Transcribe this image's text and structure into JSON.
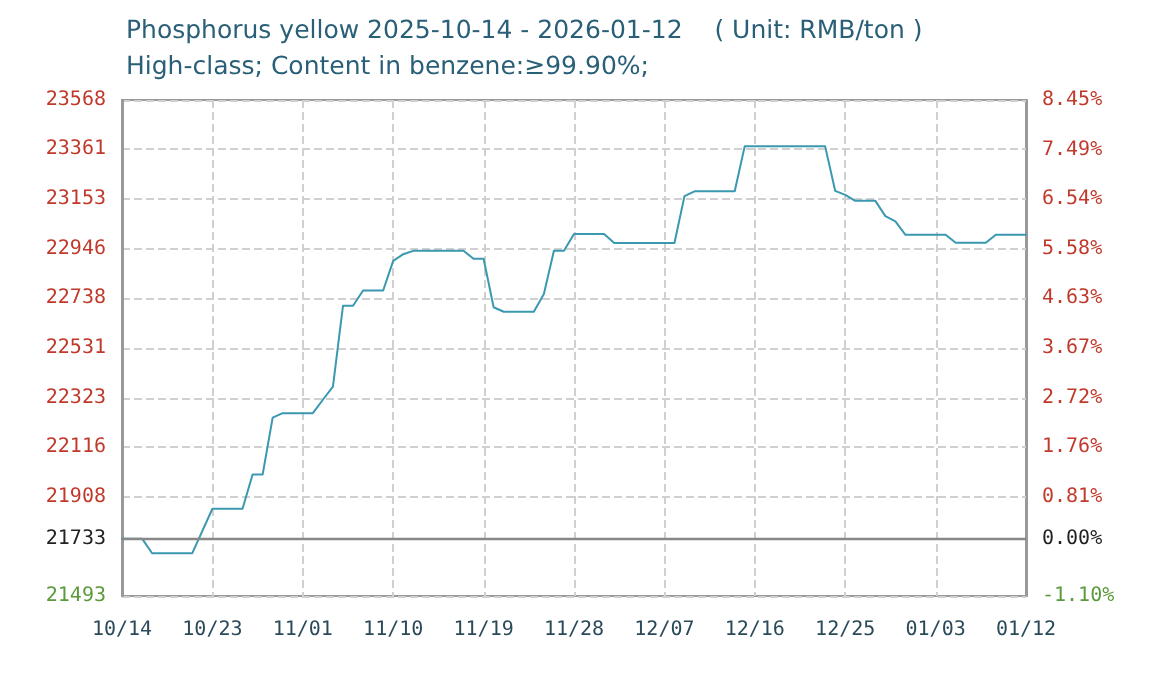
{
  "chart_data": {
    "type": "line",
    "title": "Phosphorus yellow 2025-10-14 - 2026-01-12    ( Unit: RMB/ton )",
    "subtitle": "High-class; Content in benzene:≥99.90%;",
    "x": [
      "2025-10-14",
      "2025-10-16",
      "2025-10-17",
      "2025-10-21",
      "2025-10-23",
      "2025-10-26",
      "2025-10-27",
      "2025-10-28",
      "2025-10-29",
      "2025-10-30",
      "2025-11-02",
      "2025-11-03",
      "2025-11-04",
      "2025-11-05",
      "2025-11-06",
      "2025-11-07",
      "2025-11-09",
      "2025-11-10",
      "2025-11-11",
      "2025-11-12",
      "2025-11-17",
      "2025-11-18",
      "2025-11-19",
      "2025-11-20",
      "2025-11-21",
      "2025-11-24",
      "2025-11-25",
      "2025-11-26",
      "2025-11-27",
      "2025-11-28",
      "2025-12-01",
      "2025-12-02",
      "2025-12-08",
      "2025-12-09",
      "2025-12-10",
      "2025-12-14",
      "2025-12-15",
      "2025-12-23",
      "2025-12-24",
      "2025-12-25",
      "2025-12-26",
      "2025-12-28",
      "2025-12-29",
      "2025-12-30",
      "2025-12-31",
      "2026-01-04",
      "2026-01-05",
      "2026-01-08",
      "2026-01-09",
      "2026-01-12"
    ],
    "series": [
      {
        "color": "#3a98b0",
        "values": [
          21733,
          21733,
          21672,
          21672,
          21858,
          21858,
          22001,
          22001,
          22239,
          22258,
          22258,
          22314,
          22369,
          22707,
          22707,
          22771,
          22771,
          22895,
          22923,
          22937,
          22937,
          22904,
          22904,
          22701,
          22682,
          22682,
          22756,
          22937,
          22937,
          23007,
          23007,
          22970,
          22970,
          23166,
          23186,
          23186,
          23375,
          23375,
          23188,
          23171,
          23146,
          23146,
          23082,
          23060,
          23004,
          23004,
          22971,
          22971,
          23004,
          23004
        ]
      }
    ],
    "xlim": [
      "2025-10-14",
      "2026-01-12"
    ],
    "xticks": [
      {
        "value": "2025-10-14",
        "label": "10/14"
      },
      {
        "value": "2025-10-23",
        "label": "10/23"
      },
      {
        "value": "2025-11-01",
        "label": "11/01"
      },
      {
        "value": "2025-11-10",
        "label": "11/10"
      },
      {
        "value": "2025-11-19",
        "label": "11/19"
      },
      {
        "value": "2025-11-28",
        "label": "11/28"
      },
      {
        "value": "2025-12-07",
        "label": "12/07"
      },
      {
        "value": "2025-12-16",
        "label": "12/16"
      },
      {
        "value": "2025-12-25",
        "label": "12/25"
      },
      {
        "value": "2026-01-03",
        "label": "01/03"
      },
      {
        "value": "2026-01-12",
        "label": "01/12"
      }
    ],
    "ylim": [
      21493,
      23568
    ],
    "yticks": [
      21493,
      21733,
      21908,
      22116,
      22323,
      22531,
      22738,
      22946,
      23153,
      23361,
      23568
    ],
    "y2lim": [
      -1.1,
      8.45
    ],
    "y2ticks": [
      {
        "value": -1.1,
        "label": "-1.10%"
      },
      {
        "value": 0,
        "label": "0.00%"
      },
      {
        "value": 0.81,
        "label": "0.81%"
      },
      {
        "value": 1.76,
        "label": "1.76%"
      },
      {
        "value": 2.72,
        "label": "2.72%"
      },
      {
        "value": 3.67,
        "label": "3.67%"
      },
      {
        "value": 4.63,
        "label": "4.63%"
      },
      {
        "value": 5.58,
        "label": "5.58%"
      },
      {
        "value": 6.54,
        "label": "6.54%"
      },
      {
        "value": 7.49,
        "label": "7.49%"
      },
      {
        "value": 8.45,
        "label": "8.45%"
      }
    ],
    "ref_lines": [
      {
        "axis": "y",
        "value": 21733,
        "color": "#888888"
      }
    ],
    "grid": true,
    "marker": "none",
    "line_style": "solid"
  }
}
